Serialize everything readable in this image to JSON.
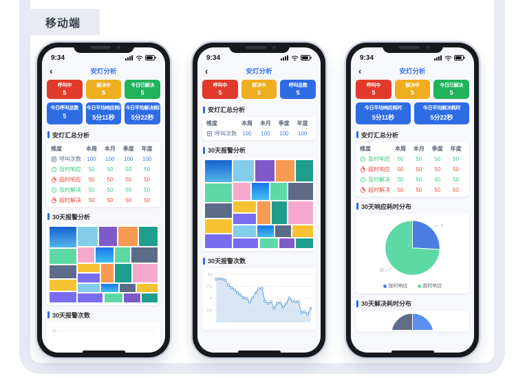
{
  "page": {
    "label": "移动端"
  },
  "shared": {
    "time": "9:34",
    "back": "‹",
    "title": "安灯分析"
  },
  "palette": {
    "red": "#e13a2a",
    "yellow": "#efad20",
    "green": "#21b35c",
    "blue": "#2e6ce4",
    "g1a": "#1563cf",
    "g1b": "#54b4ec",
    "g2a": "#1b76e8",
    "g2b": "#3fc0f0",
    "mint": "#5ed9a6",
    "slate": "#5c6b88",
    "gold": "#f6c233",
    "violet": "#7a6cf0",
    "sky": "#82cdea",
    "plum": "#8059c9",
    "orange": "#f79a52",
    "teal": "#1f9e8e",
    "pink": "#f7a8cd",
    "line": "#5b9bd5",
    "area": "#c4daf0",
    "grid": "#ebebeb",
    "tick": "#a7adb8",
    "pieBlue": "#4a7de0",
    "pieGreen": "#5ed9a6",
    "pieSlate": "#5f6d89",
    "halfBlue": "#5b8ff0"
  },
  "phones": [
    {
      "cards": [
        {
          "label": "呼叫中",
          "value": "5",
          "color": "red"
        },
        {
          "label": "解决中",
          "value": "5",
          "color": "yellow"
        },
        {
          "label": "今日已解决",
          "value": "5",
          "color": "green"
        }
      ],
      "cards2": [
        {
          "label": "今日呼叫总数",
          "value": "5",
          "color": "blue"
        },
        {
          "label": "今日平均响应耗时",
          "value": "5分11秒",
          "color": "blue"
        },
        {
          "label": "今日平均解决耗时",
          "value": "5分22秒",
          "color": "blue"
        }
      ],
      "sections": {
        "s1": "安灯汇总分析",
        "s2": "30天报警分析",
        "s3": "30天报警次数"
      },
      "table": {
        "headers": [
          "维度",
          "本周",
          "本月",
          "季度",
          "年度"
        ],
        "rows": [
          {
            "icon": "call-icon",
            "label": "呼叫次数",
            "tone": "blue",
            "values": [
              "100",
              "100",
              "100",
              "100"
            ]
          },
          {
            "icon": "clock-icon",
            "label": "及时响应",
            "tone": "green",
            "values": [
              "50",
              "50",
              "50",
              "50"
            ]
          },
          {
            "icon": "stopwatch-icon",
            "label": "超时响应",
            "tone": "red",
            "values": [
              "50",
              "50",
              "50",
              "50"
            ]
          },
          {
            "icon": "clock-icon",
            "label": "及时解决",
            "tone": "green",
            "values": [
              "50",
              "50",
              "50",
              "50"
            ]
          },
          {
            "icon": "stopwatch-icon",
            "label": "超时解决",
            "tone": "red",
            "values": [
              "50",
              "50",
              "50",
              "50"
            ]
          }
        ]
      },
      "treemap": [
        [
          0,
          0,
          26,
          29,
          "g1"
        ],
        [
          0,
          29,
          26,
          21,
          "mint"
        ],
        [
          0,
          50,
          26,
          19,
          "slate"
        ],
        [
          0,
          69,
          26,
          16,
          "gold"
        ],
        [
          0,
          85,
          26,
          15,
          "violet"
        ],
        [
          26,
          0,
          19,
          27,
          "sky"
        ],
        [
          45,
          0,
          18,
          27,
          "plum"
        ],
        [
          63,
          0,
          19,
          27,
          "orange"
        ],
        [
          82,
          0,
          18,
          27,
          "teal"
        ],
        [
          26,
          27,
          16,
          21,
          "pink"
        ],
        [
          42,
          27,
          18,
          21,
          "g2"
        ],
        [
          60,
          27,
          15,
          21,
          "mint"
        ],
        [
          75,
          27,
          25,
          21,
          "slate"
        ],
        [
          26,
          48,
          21,
          13,
          "gold"
        ],
        [
          26,
          61,
          21,
          13,
          "violet"
        ],
        [
          47,
          48,
          13,
          26,
          "orange"
        ],
        [
          60,
          48,
          16,
          26,
          "teal"
        ],
        [
          76,
          48,
          24,
          26,
          "pink"
        ],
        [
          26,
          74,
          21,
          13,
          "sky"
        ],
        [
          47,
          74,
          17,
          13,
          "g2"
        ],
        [
          64,
          74,
          16,
          13,
          "slate"
        ],
        [
          80,
          74,
          20,
          13,
          "gold"
        ],
        [
          26,
          87,
          24,
          13,
          "violet"
        ],
        [
          50,
          87,
          18,
          13,
          "mint"
        ],
        [
          68,
          87,
          16,
          13,
          "plum"
        ],
        [
          84,
          87,
          16,
          13,
          "teal"
        ]
      ],
      "axis_preview": {
        "tick": "10"
      }
    },
    {
      "cards": [
        {
          "label": "呼叫中",
          "value": "5",
          "color": "red"
        },
        {
          "label": "解决中",
          "value": "5",
          "color": "yellow"
        },
        {
          "label": "呼叫总数",
          "value": "5",
          "color": "blue"
        }
      ],
      "sections": {
        "s1": "安灯汇总分析",
        "s2": "30天报警分析",
        "s3": "30天报警次数"
      },
      "table": {
        "headers": [
          "维度",
          "本周",
          "本月",
          "季度",
          "年度"
        ],
        "rows": [
          {
            "icon": "call-icon",
            "label": "呼叫次数",
            "tone": "blue",
            "values": [
              "100",
              "100",
              "100",
              "100"
            ]
          }
        ]
      },
      "treemap": [
        [
          0,
          0,
          26,
          26,
          "g1"
        ],
        [
          0,
          26,
          26,
          22,
          "mint"
        ],
        [
          0,
          48,
          26,
          18,
          "slate"
        ],
        [
          0,
          66,
          26,
          17,
          "gold"
        ],
        [
          0,
          83,
          26,
          17,
          "violet"
        ],
        [
          26,
          0,
          20,
          25,
          "sky"
        ],
        [
          46,
          0,
          19,
          25,
          "plum"
        ],
        [
          65,
          0,
          18,
          25,
          "orange"
        ],
        [
          83,
          0,
          17,
          25,
          "teal"
        ],
        [
          26,
          25,
          17,
          21,
          "pink"
        ],
        [
          43,
          25,
          17,
          21,
          "g2"
        ],
        [
          60,
          25,
          16,
          21,
          "mint"
        ],
        [
          76,
          25,
          24,
          21,
          "slate"
        ],
        [
          26,
          46,
          22,
          14,
          "gold"
        ],
        [
          26,
          60,
          22,
          13,
          "violet"
        ],
        [
          48,
          46,
          13,
          27,
          "orange"
        ],
        [
          61,
          46,
          15,
          27,
          "teal"
        ],
        [
          76,
          46,
          24,
          27,
          "pink"
        ],
        [
          26,
          73,
          22,
          14,
          "sky"
        ],
        [
          48,
          73,
          16,
          14,
          "g2"
        ],
        [
          64,
          73,
          16,
          14,
          "slate"
        ],
        [
          80,
          73,
          20,
          14,
          "gold"
        ],
        [
          26,
          87,
          24,
          13,
          "violet"
        ],
        [
          50,
          87,
          18,
          13,
          "mint"
        ],
        [
          68,
          87,
          15,
          13,
          "plum"
        ],
        [
          83,
          87,
          17,
          13,
          "teal"
        ]
      ],
      "linechart": {
        "ymax": 10,
        "yticks": [
          {
            "v": 10,
            "label": "10"
          },
          {
            "v": 7.5,
            "label": "7.5"
          },
          {
            "v": 5,
            "label": "5"
          },
          {
            "v": 2.5,
            "label": "2.5"
          }
        ],
        "values": [
          9,
          9.1,
          9,
          8.8,
          7.8,
          7.2,
          6.8,
          6.2,
          5.7,
          5.1,
          5,
          4.2,
          5.1,
          6.2,
          7,
          7.1,
          4.4,
          4,
          4.3,
          2.9,
          4,
          4.1,
          3.2,
          4,
          5.1,
          4.4,
          4.3,
          4.3,
          2,
          2.2,
          1.7,
          2.9
        ]
      }
    },
    {
      "cards": [
        {
          "label": "呼叫中",
          "value": "5",
          "color": "red"
        },
        {
          "label": "解决中",
          "value": "5",
          "color": "yellow"
        },
        {
          "label": "今日已解决",
          "value": "5",
          "color": "green"
        }
      ],
      "cards2": [
        {
          "label": "今日平均响应耗时",
          "value": "5分11秒",
          "color": "blue"
        },
        {
          "label": "今日平均解决耗时",
          "value": "5分22秒",
          "color": "blue"
        }
      ],
      "sections": {
        "s1": "安灯汇总分析",
        "s2": "30天响应耗时分布",
        "s3": "30天解决耗时分布"
      },
      "table": {
        "headers": [
          "维度",
          "本周",
          "本月",
          "季度",
          "年度"
        ],
        "rows": [
          {
            "icon": "clock-icon",
            "label": "及时响应",
            "tone": "green",
            "values": [
              "50",
              "50",
              "50",
              "50"
            ]
          },
          {
            "icon": "stopwatch-icon",
            "label": "超时响应",
            "tone": "red",
            "values": [
              "50",
              "50",
              "50",
              "50"
            ]
          },
          {
            "icon": "clock-icon",
            "label": "及时解决",
            "tone": "green",
            "values": [
              "50",
              "50",
              "50",
              "50"
            ]
          },
          {
            "icon": "stopwatch-icon",
            "label": "超时解决",
            "tone": "red",
            "values": [
              "50",
              "50",
              "50",
              "50"
            ]
          }
        ]
      },
      "pie": {
        "slices": [
          {
            "label": "按时响应",
            "value": 7,
            "color": "pieBlue",
            "show": "7"
          },
          {
            "label": "超时响应",
            "value": 20,
            "color": "pieGreen",
            "show": "20"
          }
        ]
      },
      "pie2": {
        "slices": [
          {
            "label": "",
            "value": 5,
            "color": "halfBlue",
            "show": "5"
          },
          {
            "label": "",
            "value": 5,
            "color": "pieSlate"
          }
        ]
      }
    }
  ],
  "chart_data": [
    {
      "type": "heatmap",
      "subtype": "treemap",
      "title": "30天报警分析",
      "phone": 1,
      "note": "colored proportional tiles, no value labels visible"
    },
    {
      "type": "heatmap",
      "subtype": "treemap",
      "title": "30天报警分析",
      "phone": 2,
      "note": "colored proportional tiles, no value labels visible"
    },
    {
      "type": "line",
      "title": "30天报警次数",
      "phone": 2,
      "ylim": [
        0,
        10
      ],
      "yticks": [
        2.5,
        5,
        7.5,
        10
      ],
      "values": [
        9,
        9.1,
        9,
        8.8,
        7.8,
        7.2,
        6.8,
        6.2,
        5.7,
        5.1,
        5,
        4.2,
        5.1,
        6.2,
        7,
        7.1,
        4.4,
        4,
        4.3,
        2.9,
        4,
        4.1,
        3.2,
        4,
        5.1,
        4.4,
        4.3,
        4.3,
        2,
        2.2,
        1.7,
        2.9
      ]
    },
    {
      "type": "line",
      "title": "30天报警次数",
      "phone": 1,
      "note": "clipped, only y tick 10 visible"
    },
    {
      "type": "pie",
      "title": "30天响应耗时分布",
      "phone": 3,
      "slices": [
        {
          "name": "按时响应",
          "value": 7
        },
        {
          "name": "超时响应",
          "value": 20
        }
      ],
      "legend_position": "bottom"
    },
    {
      "type": "pie",
      "title": "30天解决耗时分布",
      "phone": 3,
      "note": "partially visible at screen bottom",
      "slices": [
        {
          "name": "",
          "value": 5
        }
      ]
    }
  ]
}
